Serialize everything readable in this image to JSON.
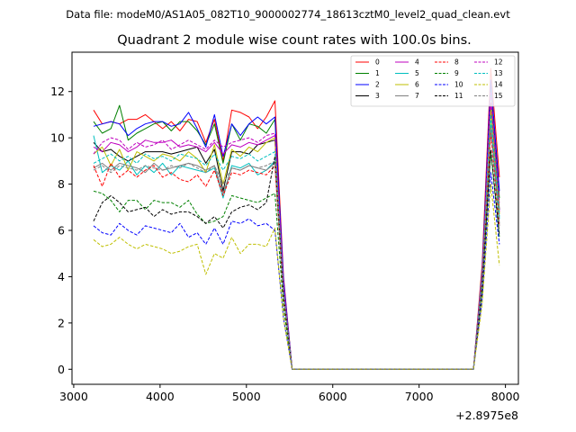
{
  "chart_data": {
    "type": "line",
    "suptitle": "Data file: modeM0/AS1A05_082T10_9000002774_18613cztM0_level2_quad_clean.evt",
    "title": "Quadrant 2 module wise count rates with 100.0s bins.",
    "xlabel": "",
    "ylabel": "",
    "offset_label": "+2.8975e8",
    "xlim": [
      2980,
      8150
    ],
    "ylim": [
      -0.65,
      13.7
    ],
    "xticks": [
      3000,
      4000,
      5000,
      6000,
      7000,
      8000
    ],
    "xtick_labels": [
      "3000",
      "4000",
      "5000",
      "6000",
      "7000",
      "8000"
    ],
    "yticks": [
      0,
      2,
      4,
      6,
      8,
      10,
      12
    ],
    "ytick_labels": [
      "0",
      "2",
      "4",
      "6",
      "8",
      "10",
      "12"
    ],
    "grid": false,
    "legend_position": "top-right",
    "legend_columns": 4,
    "x": [
      3230,
      3330,
      3430,
      3530,
      3630,
      3730,
      3830,
      3930,
      4030,
      4130,
      4230,
      4330,
      4430,
      4530,
      4630,
      4730,
      4830,
      4930,
      5030,
      5130,
      5230,
      5330,
      5430,
      5530,
      5630,
      5730,
      5830,
      5930,
      6030,
      6130,
      6230,
      6330,
      6430,
      6530,
      6630,
      6730,
      6830,
      6930,
      7030,
      7130,
      7230,
      7330,
      7430,
      7530,
      7630,
      7730,
      7830,
      7930
    ],
    "series": [
      {
        "name": "0",
        "color": "#ff0000",
        "dash": "solid",
        "values": [
          11.2,
          10.6,
          10.7,
          10.6,
          10.8,
          10.8,
          11.0,
          10.7,
          10.4,
          10.7,
          10.3,
          10.8,
          10.7,
          9.8,
          10.8,
          9.0,
          11.2,
          11.1,
          10.9,
          10.4,
          10.9,
          11.6,
          4.0,
          0,
          0,
          0,
          0,
          0,
          0,
          0,
          0,
          0,
          0,
          0,
          0,
          0,
          0,
          0,
          0,
          0,
          0,
          0,
          0,
          0,
          0,
          4.5,
          13.0,
          8.3
        ]
      },
      {
        "name": "1",
        "color": "#008000",
        "dash": "solid",
        "values": [
          10.7,
          10.2,
          10.4,
          11.4,
          9.9,
          10.2,
          10.4,
          10.6,
          10.7,
          10.3,
          10.7,
          10.7,
          10.3,
          9.7,
          10.6,
          8.9,
          10.6,
          9.9,
          10.6,
          10.5,
          10.2,
          10.8,
          3.8,
          0,
          0,
          0,
          0,
          0,
          0,
          0,
          0,
          0,
          0,
          0,
          0,
          0,
          0,
          0,
          0,
          0,
          0,
          0,
          0,
          0,
          0,
          4.3,
          12.2,
          7.4
        ]
      },
      {
        "name": "2",
        "color": "#0000ff",
        "dash": "solid",
        "values": [
          10.5,
          10.6,
          10.7,
          10.6,
          10.1,
          10.4,
          10.6,
          10.7,
          10.7,
          10.5,
          10.6,
          11.1,
          10.4,
          9.6,
          11.0,
          9.2,
          10.6,
          10.1,
          10.6,
          10.9,
          10.6,
          10.9,
          3.9,
          0,
          0,
          0,
          0,
          0,
          0,
          0,
          0,
          0,
          0,
          0,
          0,
          0,
          0,
          0,
          0,
          0,
          0,
          0,
          0,
          0,
          0,
          4.2,
          12.5,
          7.7
        ]
      },
      {
        "name": "3",
        "color": "#000000",
        "dash": "solid",
        "values": [
          9.8,
          9.4,
          9.5,
          9.2,
          9.0,
          9.2,
          9.4,
          9.4,
          9.4,
          9.3,
          9.4,
          9.5,
          9.6,
          8.9,
          9.5,
          7.7,
          9.4,
          9.4,
          9.3,
          9.7,
          9.8,
          9.9,
          3.5,
          0,
          0,
          0,
          0,
          0,
          0,
          0,
          0,
          0,
          0,
          0,
          0,
          0,
          0,
          0,
          0,
          0,
          0,
          0,
          0,
          0,
          0,
          4.0,
          11.5,
          6.9
        ]
      },
      {
        "name": "4",
        "color": "#bf00bf",
        "dash": "solid",
        "values": [
          9.6,
          9.4,
          9.8,
          9.7,
          9.4,
          9.6,
          9.9,
          9.8,
          9.8,
          9.9,
          9.6,
          9.7,
          9.6,
          9.4,
          9.8,
          9.3,
          9.7,
          9.6,
          9.8,
          9.7,
          9.9,
          10.1,
          3.6,
          0,
          0,
          0,
          0,
          0,
          0,
          0,
          0,
          0,
          0,
          0,
          0,
          0,
          0,
          0,
          0,
          0,
          0,
          0,
          0,
          0,
          0,
          4.1,
          11.4,
          6.8
        ]
      },
      {
        "name": "5",
        "color": "#00bfbf",
        "dash": "solid",
        "values": [
          10.1,
          8.5,
          8.8,
          8.6,
          9.0,
          8.4,
          8.8,
          8.5,
          8.9,
          8.4,
          8.8,
          8.7,
          8.6,
          8.5,
          8.7,
          7.4,
          8.8,
          8.7,
          8.9,
          8.4,
          8.6,
          9.0,
          3.2,
          0,
          0,
          0,
          0,
          0,
          0,
          0,
          0,
          0,
          0,
          0,
          0,
          0,
          0,
          0,
          0,
          0,
          0,
          0,
          0,
          0,
          0,
          3.8,
          10.6,
          6.5
        ]
      },
      {
        "name": "6",
        "color": "#bfbf00",
        "dash": "solid",
        "values": [
          9.3,
          9.6,
          8.8,
          9.5,
          8.6,
          9.4,
          9.2,
          9.0,
          9.3,
          9.2,
          9.0,
          9.4,
          9.1,
          8.5,
          9.7,
          8.0,
          9.5,
          9.2,
          9.6,
          9.4,
          9.8,
          10.0,
          3.3,
          0,
          0,
          0,
          0,
          0,
          0,
          0,
          0,
          0,
          0,
          0,
          0,
          0,
          0,
          0,
          0,
          0,
          0,
          0,
          0,
          0,
          0,
          3.9,
          11.2,
          6.7
        ]
      },
      {
        "name": "7",
        "color": "#808080",
        "dash": "solid",
        "values": [
          8.7,
          8.9,
          8.6,
          8.9,
          8.8,
          8.7,
          8.5,
          8.9,
          8.6,
          8.7,
          8.8,
          8.9,
          8.8,
          8.6,
          8.8,
          7.6,
          8.7,
          8.6,
          8.8,
          8.7,
          8.6,
          8.9,
          3.1,
          0,
          0,
          0,
          0,
          0,
          0,
          0,
          0,
          0,
          0,
          0,
          0,
          0,
          0,
          0,
          0,
          0,
          0,
          0,
          0,
          0,
          0,
          3.7,
          10.5,
          6.3
        ]
      },
      {
        "name": "8",
        "color": "#ff0000",
        "dash": "dashed",
        "values": [
          8.8,
          7.9,
          8.9,
          8.3,
          8.6,
          8.3,
          8.6,
          8.8,
          8.3,
          8.5,
          8.2,
          8.1,
          8.4,
          7.9,
          8.6,
          7.5,
          8.5,
          8.4,
          8.6,
          8.5,
          8.4,
          8.8,
          3.1,
          0,
          0,
          0,
          0,
          0,
          0,
          0,
          0,
          0,
          0,
          0,
          0,
          0,
          0,
          0,
          0,
          0,
          0,
          0,
          0,
          0,
          0,
          3.7,
          10.2,
          6.2
        ]
      },
      {
        "name": "9",
        "color": "#008000",
        "dash": "dashed",
        "values": [
          7.7,
          7.6,
          7.3,
          6.8,
          7.3,
          7.3,
          6.9,
          7.3,
          7.2,
          7.2,
          7.0,
          7.3,
          6.7,
          6.3,
          6.4,
          6.6,
          7.5,
          7.4,
          7.3,
          7.2,
          7.4,
          7.6,
          2.7,
          0,
          0,
          0,
          0,
          0,
          0,
          0,
          0,
          0,
          0,
          0,
          0,
          0,
          0,
          0,
          0,
          0,
          0,
          0,
          0,
          0,
          0,
          3.4,
          9.4,
          5.7
        ]
      },
      {
        "name": "10",
        "color": "#0000ff",
        "dash": "dashed",
        "values": [
          6.2,
          5.9,
          5.8,
          6.3,
          6.0,
          5.8,
          6.2,
          6.1,
          6.0,
          5.9,
          6.3,
          5.7,
          5.9,
          5.4,
          6.1,
          5.4,
          6.4,
          6.3,
          6.5,
          6.2,
          6.3,
          6.0,
          2.2,
          0,
          0,
          0,
          0,
          0,
          0,
          0,
          0,
          0,
          0,
          0,
          0,
          0,
          0,
          0,
          0,
          0,
          0,
          0,
          0,
          0,
          0,
          3.0,
          8.5,
          5.4
        ]
      },
      {
        "name": "11",
        "color": "#000000",
        "dash": "dashed",
        "values": [
          6.4,
          7.2,
          7.5,
          7.2,
          6.8,
          6.9,
          7.0,
          6.6,
          6.9,
          6.7,
          6.8,
          6.8,
          6.6,
          6.3,
          6.6,
          6.1,
          6.8,
          7.0,
          7.1,
          6.9,
          7.2,
          9.2,
          3.3,
          0,
          0,
          0,
          0,
          0,
          0,
          0,
          0,
          0,
          0,
          0,
          0,
          0,
          0,
          0,
          0,
          0,
          0,
          0,
          0,
          0,
          0,
          3.5,
          9.5,
          5.8
        ]
      },
      {
        "name": "12",
        "color": "#bf00bf",
        "dash": "dashed",
        "values": [
          9.3,
          9.8,
          10.0,
          9.9,
          9.5,
          9.8,
          9.6,
          9.7,
          9.9,
          9.5,
          9.7,
          9.9,
          9.7,
          9.5,
          9.9,
          9.6,
          9.8,
          9.9,
          10.0,
          9.8,
          10.1,
          10.2,
          3.7,
          0,
          0,
          0,
          0,
          0,
          0,
          0,
          0,
          0,
          0,
          0,
          0,
          0,
          0,
          0,
          0,
          0,
          0,
          0,
          0,
          0,
          0,
          4.2,
          12.0,
          7.2
        ]
      },
      {
        "name": "13",
        "color": "#00bfbf",
        "dash": "dashed",
        "values": [
          8.9,
          9.1,
          9.3,
          9.0,
          9.2,
          8.9,
          9.3,
          9.1,
          9.2,
          9.0,
          9.3,
          9.2,
          9.1,
          8.8,
          9.3,
          8.6,
          9.2,
          9.1,
          9.3,
          9.0,
          9.2,
          9.4,
          3.4,
          0,
          0,
          0,
          0,
          0,
          0,
          0,
          0,
          0,
          0,
          0,
          0,
          0,
          0,
          0,
          0,
          0,
          0,
          0,
          0,
          0,
          0,
          3.9,
          11.0,
          6.6
        ]
      },
      {
        "name": "14",
        "color": "#bfbf00",
        "dash": "dashed",
        "values": [
          5.6,
          5.3,
          5.4,
          5.7,
          5.4,
          5.2,
          5.4,
          5.3,
          5.2,
          5.0,
          5.1,
          5.3,
          5.4,
          4.1,
          5.0,
          4.8,
          5.7,
          5.0,
          5.4,
          5.4,
          5.3,
          6.1,
          2.2,
          0,
          0,
          0,
          0,
          0,
          0,
          0,
          0,
          0,
          0,
          0,
          0,
          0,
          0,
          0,
          0,
          0,
          0,
          0,
          0,
          0,
          0,
          2.8,
          8.0,
          4.5
        ]
      },
      {
        "name": "15",
        "color": "#808080",
        "dash": "dashed",
        "values": [
          8.6,
          8.8,
          8.5,
          8.8,
          8.7,
          8.6,
          8.8,
          8.7,
          8.6,
          8.8,
          8.7,
          8.9,
          8.7,
          8.5,
          8.8,
          8.0,
          8.7,
          8.6,
          8.8,
          8.7,
          8.8,
          9.0,
          3.2,
          0,
          0,
          0,
          0,
          0,
          0,
          0,
          0,
          0,
          0,
          0,
          0,
          0,
          0,
          0,
          0,
          0,
          0,
          0,
          0,
          0,
          0,
          3.7,
          10.4,
          6.2
        ]
      }
    ]
  }
}
